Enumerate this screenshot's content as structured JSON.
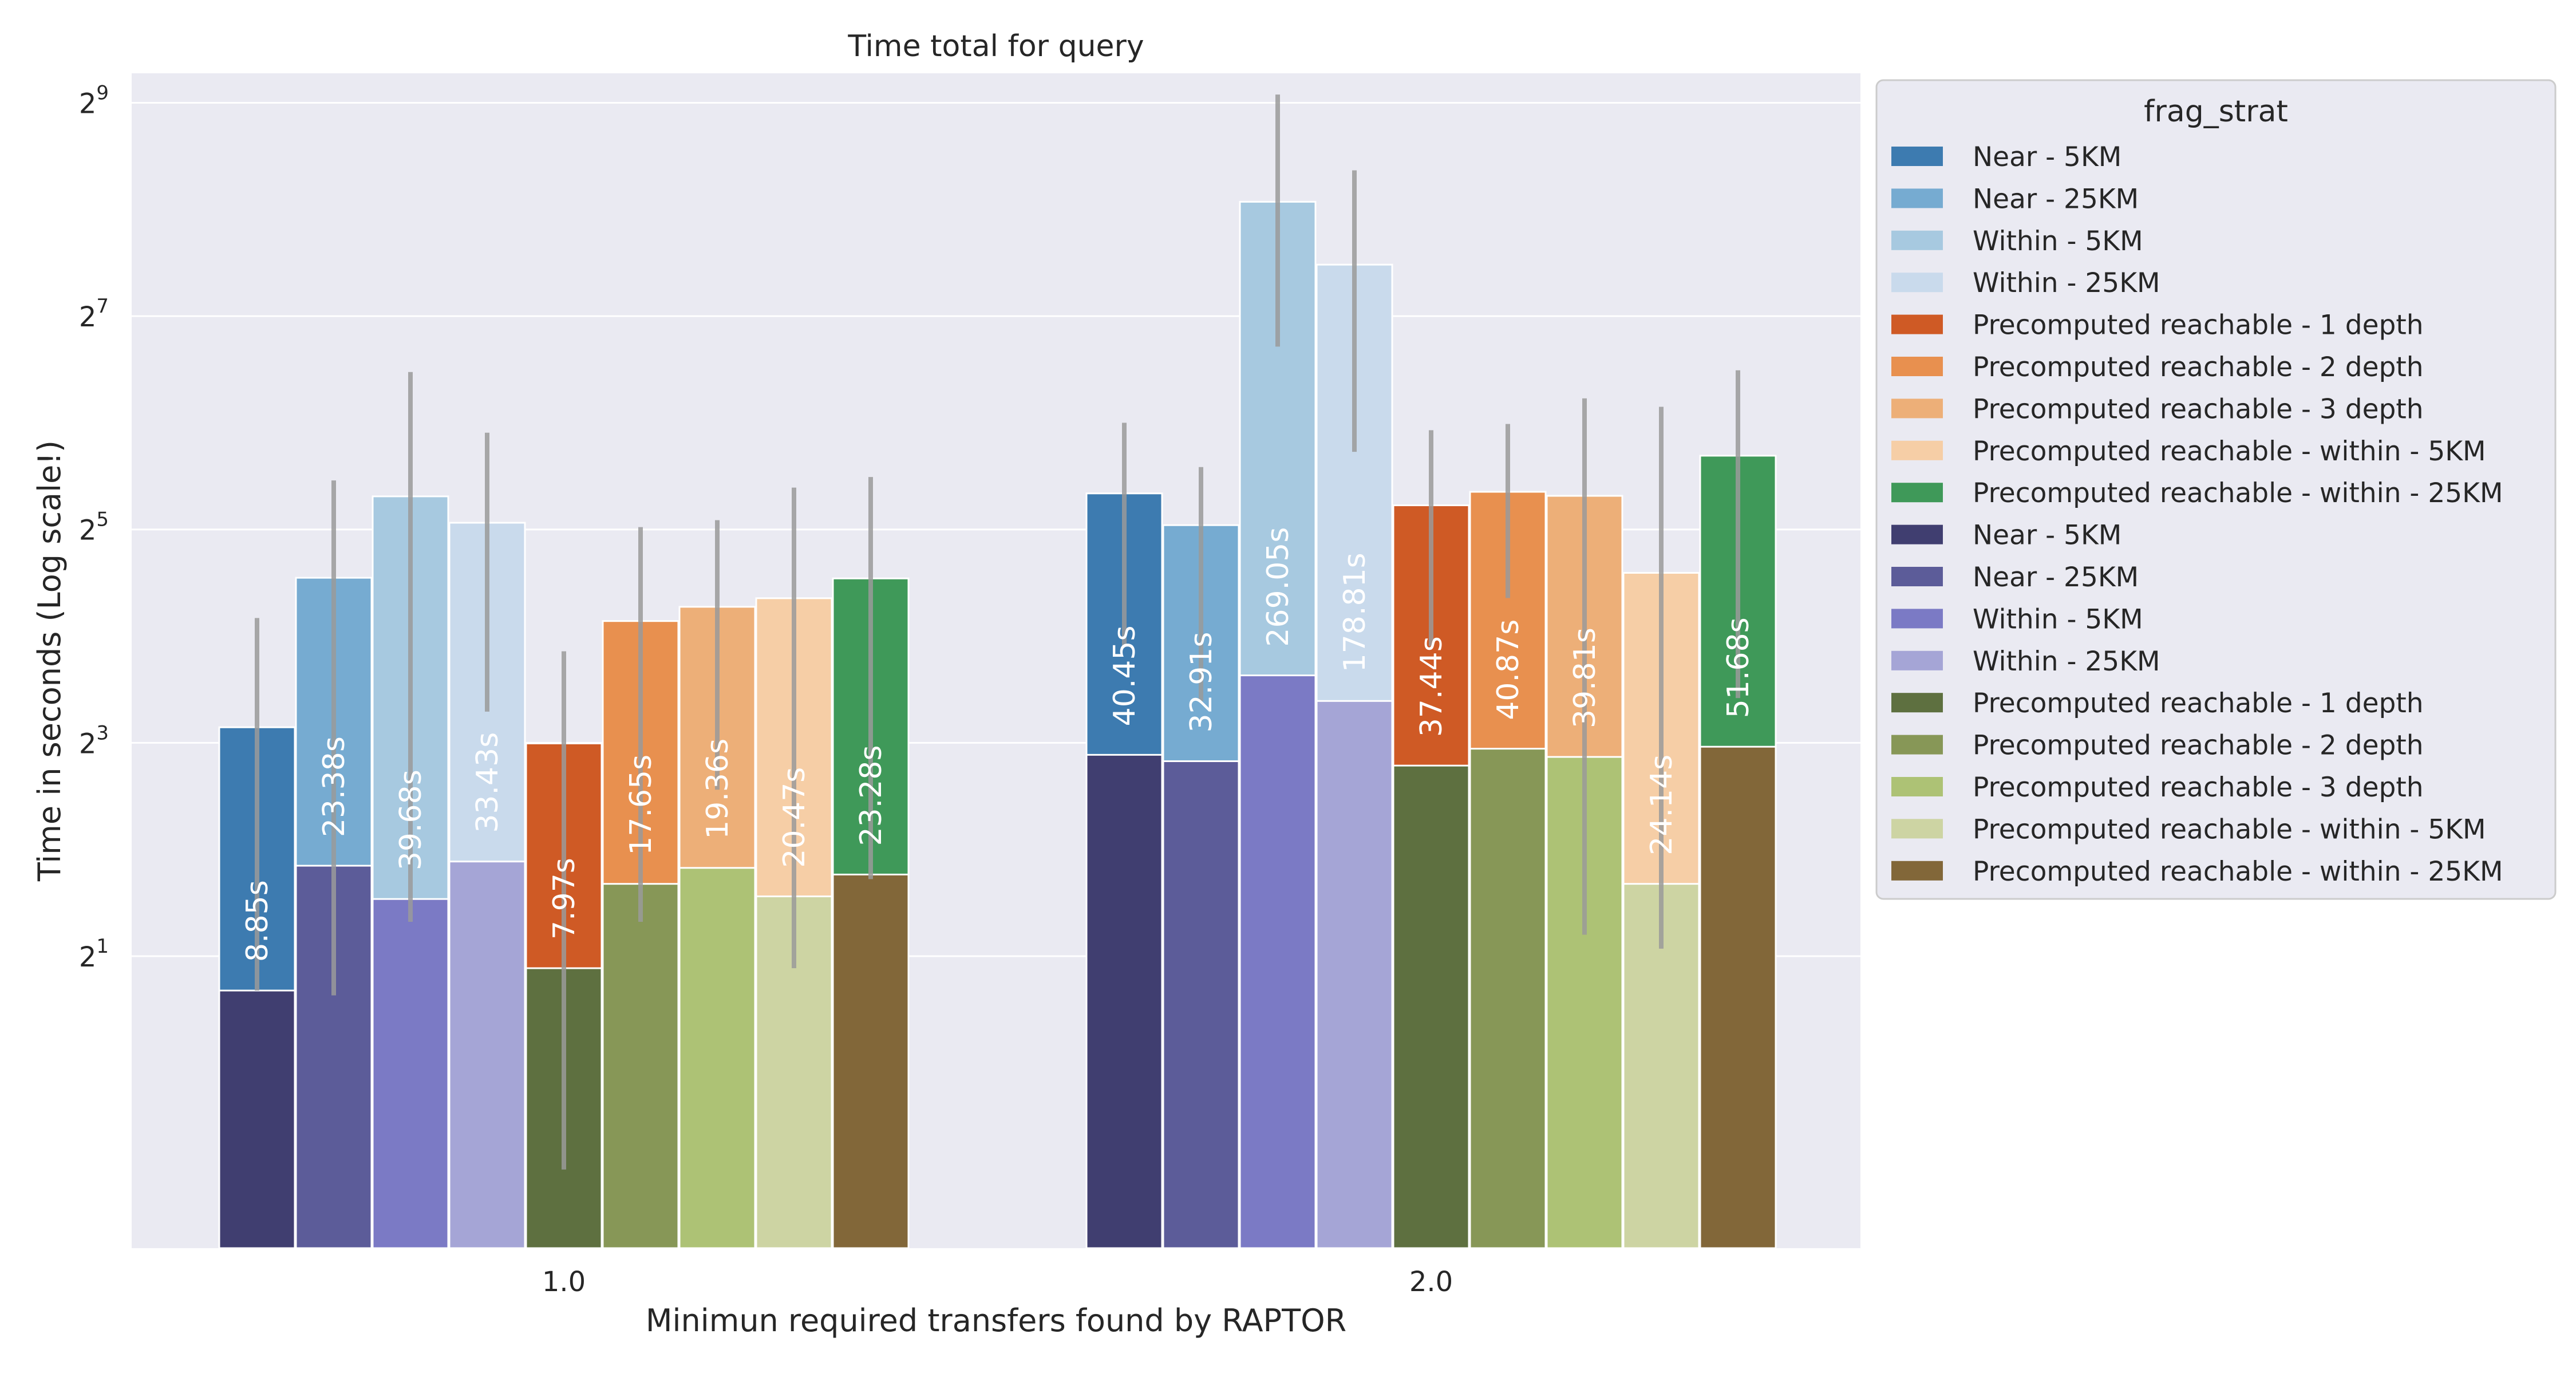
{
  "chart_data": {
    "type": "bar",
    "title": "Time total for query",
    "xlabel": "Minimun required transfers found by RAPTOR",
    "ylabel": "Time in seconds (Log scale!)",
    "y_scale": "log2",
    "ylim": [
      0.3,
      620
    ],
    "y_ticks": [
      2,
      8,
      32,
      128,
      512
    ],
    "y_tick_labels": [
      {
        "base": "2",
        "exp": "1"
      },
      {
        "base": "2",
        "exp": "3"
      },
      {
        "base": "2",
        "exp": "5"
      },
      {
        "base": "2",
        "exp": "7"
      },
      {
        "base": "2",
        "exp": "9"
      }
    ],
    "grid": true,
    "legend_position": "right-outside",
    "categories": [
      "1.0",
      "2.0"
    ],
    "series_groups": [
      {
        "layer": "back",
        "series": [
          {
            "name": "Near - 5KM",
            "color": "#3d7bb0",
            "values": [
              8.85,
              40.45
            ],
            "err_low": [
              1.6,
              15.0
            ],
            "err_high": [
              18.0,
              64.0
            ]
          },
          {
            "name": "Near - 25KM",
            "color": "#76abd1",
            "values": [
              23.38,
              32.91
            ],
            "err_low": [
              1.55,
              10.5
            ],
            "err_high": [
              44.0,
              48.0
            ]
          },
          {
            "name": "Within - 5KM",
            "color": "#a7c9e0",
            "values": [
              39.68,
              269.05
            ],
            "err_low": [
              2.5,
              105.0
            ],
            "err_high": [
              89.0,
              540.0
            ]
          },
          {
            "name": "Within - 25KM",
            "color": "#c9daec",
            "values": [
              33.43,
              178.81
            ],
            "err_low": [
              9.8,
              53.0
            ],
            "err_high": [
              60.0,
              330.0
            ]
          },
          {
            "name": "Precomputed reachable - 1 depth",
            "color": "#cf5a25",
            "values": [
              7.97,
              37.44
            ],
            "err_low": [
              0.5,
              15.0
            ],
            "err_high": [
              14.5,
              61.0
            ]
          },
          {
            "name": "Precomputed reachable - 2 depth",
            "color": "#e8904f",
            "values": [
              17.65,
              40.87
            ],
            "err_low": [
              2.5,
              20.5
            ],
            "err_high": [
              32.5,
              63.5
            ]
          },
          {
            "name": "Precomputed reachable - 3 depth",
            "color": "#edaf78",
            "values": [
              19.36,
              39.81
            ],
            "err_low": [
              5.9,
              2.3
            ],
            "err_high": [
              34.0,
              75.0
            ]
          },
          {
            "name": "Precomputed reachable - within - 5KM",
            "color": "#f6cea6",
            "values": [
              20.47,
              24.14
            ],
            "err_low": [
              1.85,
              2.1
            ],
            "err_high": [
              42.0,
              71.0
            ]
          },
          {
            "name": "Precomputed reachable - within - 25KM",
            "color": "#3f9959",
            "values": [
              23.28,
              51.68
            ],
            "err_low": [
              3.3,
              10.7
            ],
            "err_high": [
              45.0,
              90.0
            ]
          }
        ]
      },
      {
        "layer": "front",
        "series": [
          {
            "name": "Near - 5KM",
            "color": "#403e70",
            "values": [
              1.6,
              7.4
            ]
          },
          {
            "name": "Near - 25KM",
            "color": "#5c5c99",
            "values": [
              3.6,
              7.1
            ]
          },
          {
            "name": "Within - 5KM",
            "color": "#7b7ac5",
            "values": [
              2.9,
              12.4
            ]
          },
          {
            "name": "Within - 25KM",
            "color": "#a5a5d6",
            "values": [
              3.7,
              10.5
            ]
          },
          {
            "name": "Precomputed reachable - 1 depth",
            "color": "#5e7040",
            "values": [
              1.85,
              6.9
            ]
          },
          {
            "name": "Precomputed reachable - 2 depth",
            "color": "#879757",
            "values": [
              3.2,
              7.7
            ]
          },
          {
            "name": "Precomputed reachable - 3 depth",
            "color": "#adc275",
            "values": [
              3.55,
              7.3
            ]
          },
          {
            "name": "Precomputed reachable - within - 5KM",
            "color": "#cdd4a3",
            "values": [
              2.95,
              3.2
            ]
          },
          {
            "name": "Precomputed reachable - within - 25KM",
            "color": "#826739",
            "values": [
              3.4,
              7.8
            ]
          }
        ]
      }
    ],
    "bar_labels": [
      [
        "8.85s",
        "40.45s"
      ],
      [
        "23.38s",
        "32.91s"
      ],
      [
        "39.68s",
        "269.05s"
      ],
      [
        "33.43s",
        "178.81s"
      ],
      [
        "7.97s",
        "37.44s"
      ],
      [
        "17.65s",
        "40.87s"
      ],
      [
        "19.36s",
        "39.81s"
      ],
      [
        "20.47s",
        "24.14s"
      ],
      [
        "23.28s",
        "51.68s"
      ]
    ],
    "legend": {
      "title": "frag_strat",
      "entries": [
        {
          "label": "Near - 5KM",
          "color": "#3d7bb0"
        },
        {
          "label": "Near - 25KM",
          "color": "#76abd1"
        },
        {
          "label": "Within - 5KM",
          "color": "#a7c9e0"
        },
        {
          "label": "Within - 25KM",
          "color": "#c9daec"
        },
        {
          "label": "Precomputed reachable - 1 depth",
          "color": "#cf5a25"
        },
        {
          "label": "Precomputed reachable - 2 depth",
          "color": "#e8904f"
        },
        {
          "label": "Precomputed reachable - 3 depth",
          "color": "#edaf78"
        },
        {
          "label": "Precomputed reachable - within - 5KM",
          "color": "#f6cea6"
        },
        {
          "label": "Precomputed reachable - within - 25KM",
          "color": "#3f9959"
        },
        {
          "label": "Near - 5KM",
          "color": "#403e70"
        },
        {
          "label": "Near - 25KM",
          "color": "#5c5c99"
        },
        {
          "label": "Within - 5KM",
          "color": "#7b7ac5"
        },
        {
          "label": "Within - 25KM",
          "color": "#a5a5d6"
        },
        {
          "label": "Precomputed reachable - 1 depth",
          "color": "#5e7040"
        },
        {
          "label": "Precomputed reachable - 2 depth",
          "color": "#879757"
        },
        {
          "label": "Precomputed reachable - 3 depth",
          "color": "#adc275"
        },
        {
          "label": "Precomputed reachable - within - 5KM",
          "color": "#cdd4a3"
        },
        {
          "label": "Precomputed reachable - within - 25KM",
          "color": "#826739"
        }
      ]
    },
    "colors": {
      "plot_background": "#eaeaf2",
      "grid": "#ffffff",
      "error_bar": "#9a9a9a",
      "bar_label_text": "#ffffff"
    }
  }
}
